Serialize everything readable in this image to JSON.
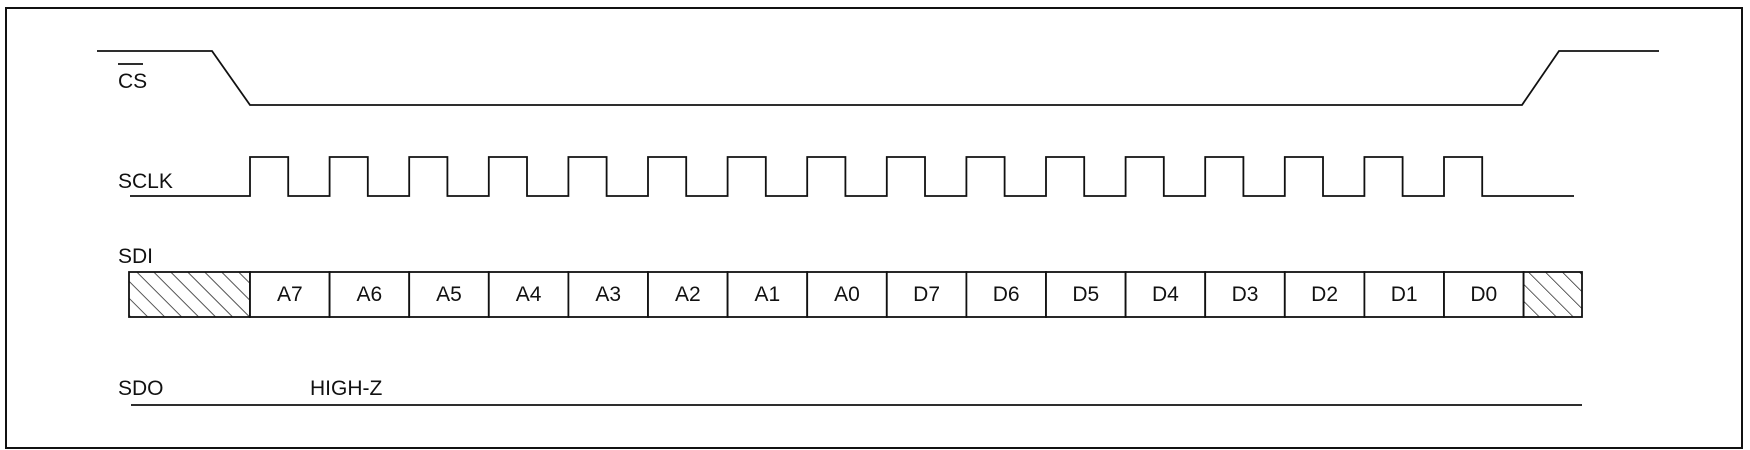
{
  "signals": {
    "cs": {
      "label": "CS",
      "overbar": true
    },
    "sclk": {
      "label": "SCLK",
      "clock_pulses": 16
    },
    "sdi": {
      "label": "SDI",
      "bits": [
        "A7",
        "A6",
        "A5",
        "A4",
        "A3",
        "A2",
        "A1",
        "A0",
        "D7",
        "D6",
        "D5",
        "D4",
        "D3",
        "D2",
        "D1",
        "D0"
      ],
      "leading_fill": "hatched",
      "trailing_fill": "hatched"
    },
    "sdo": {
      "label": "SDO",
      "state_label": "HIGH-Z"
    }
  },
  "colors": {
    "ink": "#111111",
    "background": "#ffffff"
  }
}
